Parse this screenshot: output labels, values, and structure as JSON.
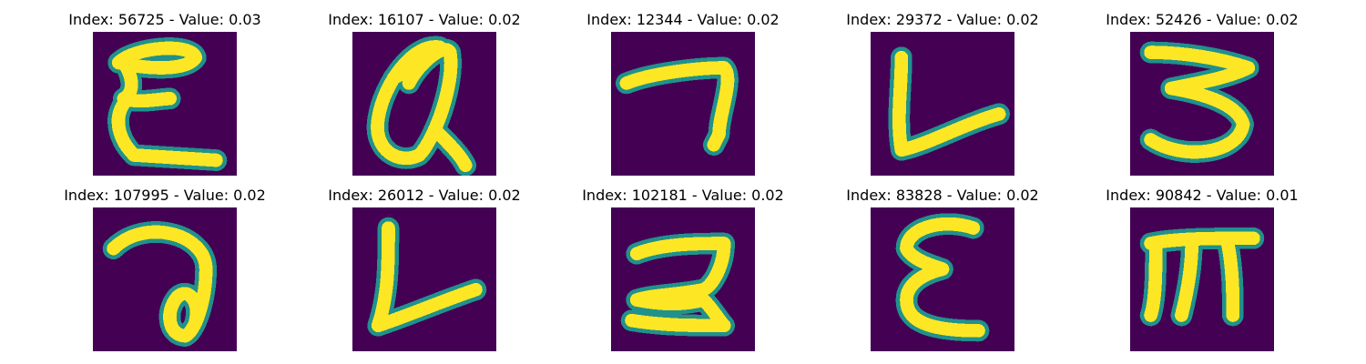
{
  "colors": {
    "background": "#440154",
    "stroke_edge": "#21918c",
    "stroke_core": "#fde725"
  },
  "panels": [
    {
      "title": "Index: 56725 - Value: 0.03",
      "glyph": "E",
      "glyph_name": "handwritten-E-glyph"
    },
    {
      "title": "Index: 16107 - Value: 0.02",
      "glyph": "Q",
      "glyph_name": "handwritten-Q-glyph"
    },
    {
      "title": "Index: 12344 - Value: 0.02",
      "glyph": "seven",
      "glyph_name": "handwritten-7-glyph"
    },
    {
      "title": "Index: 29372 - Value: 0.02",
      "glyph": "L",
      "glyph_name": "handwritten-L-glyph"
    },
    {
      "title": "Index: 52426 - Value: 0.02",
      "glyph": "three",
      "glyph_name": "handwritten-3-glyph"
    },
    {
      "title": "Index: 107995 - Value: 0.02",
      "glyph": "a",
      "glyph_name": "handwritten-a-glyph"
    },
    {
      "title": "Index: 26012 - Value: 0.02",
      "glyph": "L2",
      "glyph_name": "handwritten-L-glyph"
    },
    {
      "title": "Index: 102181 - Value: 0.02",
      "glyph": "two",
      "glyph_name": "handwritten-2-glyph"
    },
    {
      "title": "Index: 83828 - Value: 0.02",
      "glyph": "E2",
      "glyph_name": "handwritten-E-glyph"
    },
    {
      "title": "Index: 90842 - Value: 0.01",
      "glyph": "M",
      "glyph_name": "handwritten-M-glyph"
    }
  ]
}
